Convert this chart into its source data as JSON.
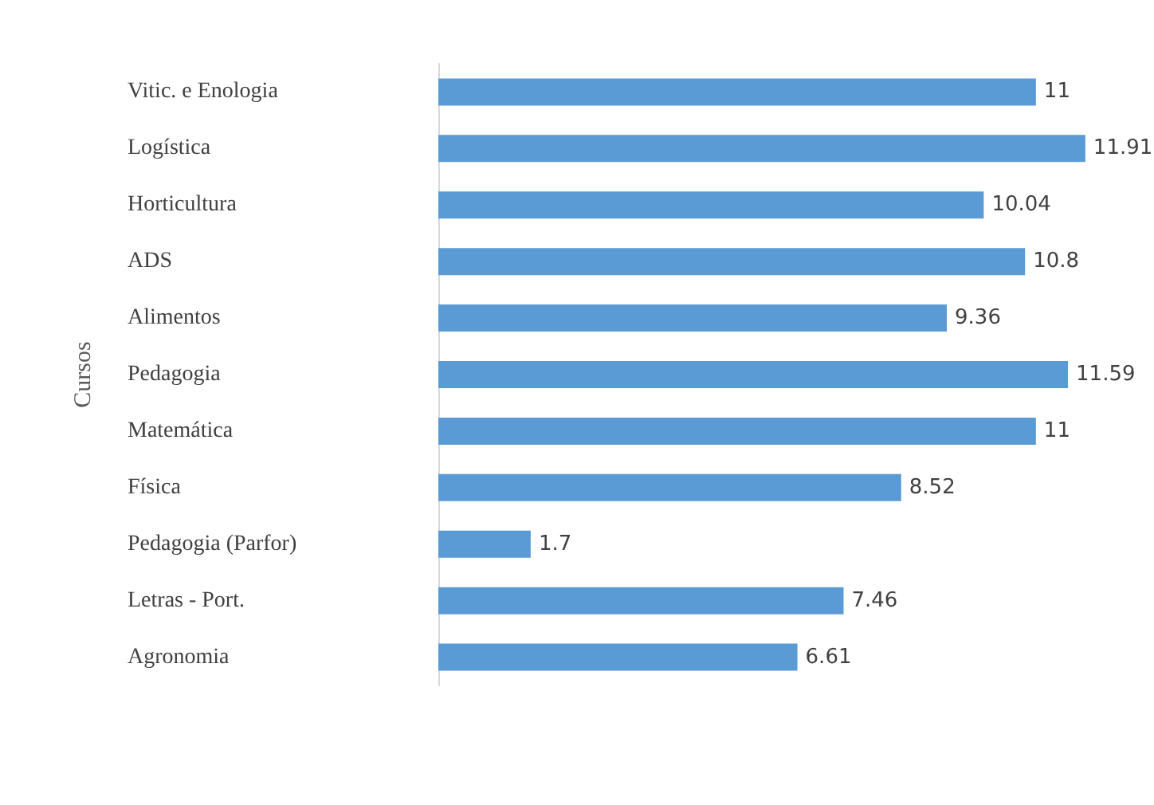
{
  "chart_data": {
    "type": "bar",
    "orientation": "horizontal",
    "ylabel": "Cursos",
    "categories": [
      "Vitic. e Enologia",
      "Logística",
      "Horticultura",
      "ADS",
      "Alimentos",
      "Pedagogia",
      "Matemática",
      "Física",
      "Pedagogia (Parfor)",
      "Letras - Port.",
      "Agronomia"
    ],
    "values": [
      11,
      11.91,
      10.04,
      10.8,
      9.36,
      11.59,
      11,
      8.52,
      1.7,
      7.46,
      6.61
    ],
    "color": "#5b9bd5",
    "data_labels": true
  }
}
